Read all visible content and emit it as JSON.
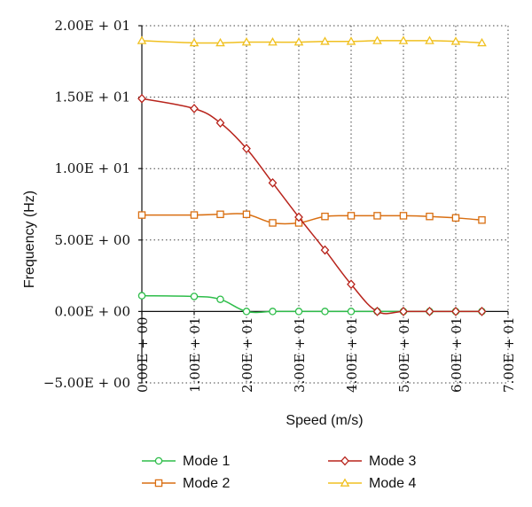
{
  "chart_data": {
    "type": "line",
    "xlabel": "Speed (m/s)",
    "ylabel": "Frequency (Hz)",
    "xlim": [
      0,
      70
    ],
    "ylim": [
      -5,
      20
    ],
    "x_ticks": [
      0,
      10,
      20,
      30,
      40,
      50,
      60,
      70
    ],
    "x_tick_labels": [
      "0.00E + 00",
      "1.00E + 01",
      "2.00E + 01",
      "3.00E + 01",
      "4.00E + 01",
      "5.00E + 01",
      "6.00E + 01",
      "7.00E + 01"
    ],
    "y_ticks": [
      -5,
      0,
      5,
      10,
      15,
      20
    ],
    "y_tick_labels": [
      "−5.00E + 00",
      "0.00E + 00",
      "5.00E + 00",
      "1.00E + 01",
      "1.50E + 01",
      "2.00E + 01"
    ],
    "grid": true,
    "legend_position": "bottom",
    "x": [
      0,
      10,
      15,
      20,
      25,
      30,
      35,
      40,
      45,
      50,
      55,
      60,
      65
    ],
    "series": [
      {
        "name": "Mode 1",
        "color": "#2ebd4a",
        "marker": "circle",
        "values": [
          1.1,
          1.05,
          0.85,
          0.0,
          0.0,
          0.0,
          0.0,
          0.0,
          0.0,
          0.0,
          0.0,
          0.0,
          0.0
        ]
      },
      {
        "name": "Mode 2",
        "color": "#d96f12",
        "marker": "square",
        "values": [
          6.75,
          6.75,
          6.8,
          6.8,
          6.2,
          6.2,
          6.65,
          6.7,
          6.7,
          6.7,
          6.65,
          6.55,
          6.4
        ]
      },
      {
        "name": "Mode 3",
        "color": "#b8241c",
        "marker": "diamond",
        "values": [
          14.9,
          14.2,
          13.2,
          11.4,
          9.0,
          6.6,
          4.3,
          1.9,
          0.0,
          0.0,
          0.0,
          0.0,
          0.0
        ]
      },
      {
        "name": "Mode 4",
        "color": "#f0c020",
        "marker": "triangle",
        "values": [
          18.95,
          18.8,
          18.8,
          18.85,
          18.85,
          18.85,
          18.9,
          18.9,
          18.95,
          18.95,
          18.95,
          18.9,
          18.8
        ]
      }
    ]
  }
}
